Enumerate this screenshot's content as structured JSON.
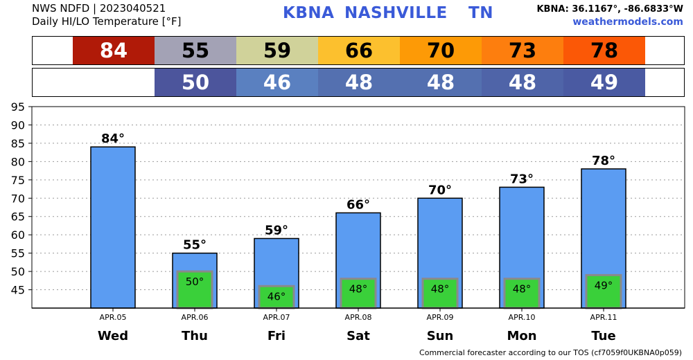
{
  "header": {
    "source_line": "NWS NDFD | 2023040521",
    "subtitle": "Daily HI/LO Temperature [°F]",
    "station": "KBNA",
    "city": "NASHVILLE",
    "state": "TN",
    "coords": "KBNA: 36.1167°, -86.6833°W",
    "site": "weathermodels.com"
  },
  "footer": "Commercial forecaster according to our TOS (cf7059f0UKBNA0p059)",
  "hi_strip": [
    {
      "value": "84",
      "color": "#b01a08",
      "text_color": "#ffffff"
    },
    {
      "value": "55",
      "color": "#a3a2b5",
      "text_color": "#000000"
    },
    {
      "value": "59",
      "color": "#d0d29a",
      "text_color": "#000000"
    },
    {
      "value": "66",
      "color": "#fcc02e",
      "text_color": "#000000"
    },
    {
      "value": "70",
      "color": "#fd9a06",
      "text_color": "#000000"
    },
    {
      "value": "73",
      "color": "#fd7e0e",
      "text_color": "#000000"
    },
    {
      "value": "78",
      "color": "#fb5806",
      "text_color": "#000000"
    }
  ],
  "lo_strip": [
    {
      "value": "",
      "color": "#ffffff",
      "text_color": "#ffffff"
    },
    {
      "value": "50",
      "color": "#4c559c",
      "text_color": "#ffffff"
    },
    {
      "value": "46",
      "color": "#5a80c0",
      "text_color": "#ffffff"
    },
    {
      "value": "48",
      "color": "#5470b0",
      "text_color": "#ffffff"
    },
    {
      "value": "48",
      "color": "#5470b0",
      "text_color": "#ffffff"
    },
    {
      "value": "48",
      "color": "#4f64a8",
      "text_color": "#ffffff"
    },
    {
      "value": "49",
      "color": "#4a5aa2",
      "text_color": "#ffffff"
    }
  ],
  "chart_data": {
    "type": "bar",
    "categories": [
      "Wed",
      "Thu",
      "Fri",
      "Sat",
      "Sun",
      "Mon",
      "Tue"
    ],
    "dates": [
      "APR.05",
      "APR.06",
      "APR.07",
      "APR.08",
      "APR.09",
      "APR.10",
      "APR.11"
    ],
    "series": [
      {
        "name": "",
        "values": [
          84,
          55,
          59,
          66,
          70,
          73,
          78
        ],
        "labels": [
          "84°",
          "55°",
          "59°",
          "66°",
          "70°",
          "73°",
          "78°"
        ],
        "color": "#5b9cf2"
      },
      {
        "name": "",
        "values": [
          null,
          50,
          46,
          48,
          48,
          48,
          49
        ],
        "labels": [
          "",
          "50°",
          "46°",
          "48°",
          "48°",
          "48°",
          "49°"
        ],
        "color": "#3ad03a"
      }
    ],
    "ylim": [
      40,
      95
    ],
    "yticks": [
      45,
      50,
      55,
      60,
      65,
      70,
      75,
      80,
      85,
      90,
      95
    ],
    "grid": true
  }
}
